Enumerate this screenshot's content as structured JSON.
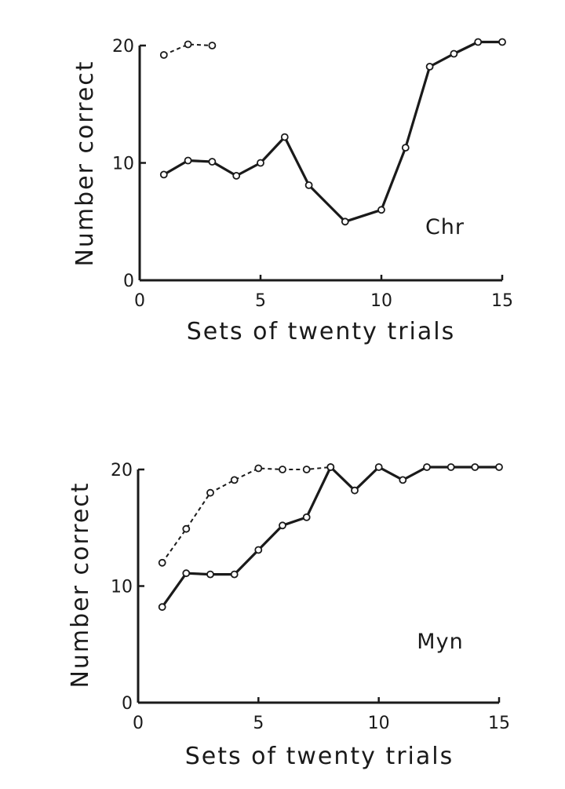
{
  "chart_data": [
    {
      "type": "line",
      "panel_label": "Chr",
      "xlabel": "Sets of twenty trials",
      "ylabel": "Number correct",
      "xlim": [
        0,
        15
      ],
      "ylim": [
        0,
        20
      ],
      "xticks": [
        0,
        5,
        10,
        15
      ],
      "yticks": [
        0,
        10,
        20
      ],
      "series": [
        {
          "style": "solid",
          "x": [
            1,
            2,
            3,
            4,
            5,
            6,
            7,
            8.5,
            10,
            11,
            12,
            13,
            14,
            15
          ],
          "y": [
            9,
            10.2,
            10.1,
            8.9,
            10,
            12.2,
            8.1,
            5,
            6,
            11.3,
            18.2,
            19.3,
            20.3,
            20.3
          ]
        },
        {
          "style": "dashed",
          "x": [
            1,
            2,
            3
          ],
          "y": [
            19.2,
            20.1,
            20
          ]
        }
      ]
    },
    {
      "type": "line",
      "panel_label": "Myn",
      "xlabel": "Sets of twenty trials",
      "ylabel": "Number correct",
      "xlim": [
        0,
        15
      ],
      "ylim": [
        0,
        20
      ],
      "xticks": [
        0,
        5,
        10,
        15
      ],
      "yticks": [
        0,
        10,
        20
      ],
      "series": [
        {
          "style": "solid",
          "x": [
            1,
            2,
            3,
            4,
            5,
            6,
            7,
            8,
            9,
            10,
            11,
            12,
            13,
            14,
            15
          ],
          "y": [
            8.2,
            11.1,
            11,
            11,
            13.1,
            15.2,
            15.9,
            20.2,
            18.2,
            20.2,
            19.1,
            20.2,
            20.2,
            20.2,
            20.2
          ]
        },
        {
          "style": "dashed",
          "x": [
            1,
            2,
            3,
            4,
            5,
            6,
            7,
            8
          ],
          "y": [
            12,
            14.9,
            18,
            19.1,
            20.1,
            20,
            20,
            20.2
          ]
        }
      ]
    }
  ]
}
